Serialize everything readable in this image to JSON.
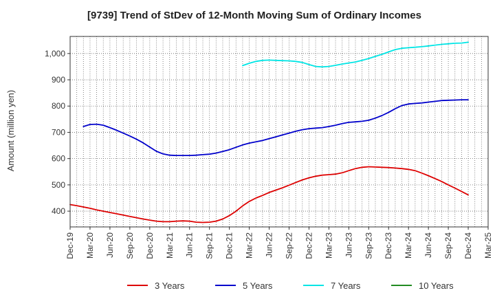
{
  "chart_data": {
    "type": "line",
    "title": "[9739]  Trend of StDev of 12-Month Moving Sum of Ordinary Incomes",
    "xlabel": "",
    "ylabel": "Amount (million yen)",
    "x_ticks": [
      "Dec-19",
      "Mar-20",
      "Jun-20",
      "Sep-20",
      "Dec-20",
      "Mar-21",
      "Jun-21",
      "Sep-21",
      "Dec-21",
      "Mar-22",
      "Jun-22",
      "Sep-22",
      "Dec-22",
      "Mar-23",
      "Jun-23",
      "Sep-23",
      "Dec-23",
      "Mar-24",
      "Jun-24",
      "Sep-24",
      "Dec-24",
      "Mar-25"
    ],
    "y_ticks": [
      400,
      500,
      600,
      700,
      800,
      900,
      1000
    ],
    "y_tick_labels": [
      "400",
      "500",
      "600",
      "700",
      "800",
      "900",
      "1,000"
    ],
    "ylim": [
      340,
      1065
    ],
    "grid": true,
    "legend_position": "bottom",
    "series": [
      {
        "name": "3 Years",
        "color": "#dd0000",
        "x": [
          "Dec-19",
          "Jan-20",
          "Feb-20",
          "Mar-20",
          "Apr-20",
          "May-20",
          "Jun-20",
          "Jul-20",
          "Aug-20",
          "Sep-20",
          "Oct-20",
          "Nov-20",
          "Dec-20",
          "Jan-21",
          "Feb-21",
          "Mar-21",
          "Apr-21",
          "May-21",
          "Jun-21",
          "Jul-21",
          "Aug-21",
          "Sep-21",
          "Oct-21",
          "Nov-21",
          "Dec-21",
          "Jan-22",
          "Feb-22",
          "Mar-22",
          "Apr-22",
          "May-22",
          "Jun-22",
          "Jul-22",
          "Aug-22",
          "Sep-22",
          "Oct-22",
          "Nov-22",
          "Dec-22",
          "Jan-23",
          "Feb-23",
          "Mar-23",
          "Apr-23",
          "May-23",
          "Jun-23",
          "Jul-23",
          "Aug-23",
          "Sep-23",
          "Oct-23",
          "Nov-23",
          "Dec-23",
          "Jan-24",
          "Feb-24",
          "Mar-24",
          "Apr-24",
          "May-24",
          "Jun-24",
          "Jul-24",
          "Aug-24",
          "Sep-24",
          "Oct-24",
          "Nov-24",
          "Dec-24"
        ],
        "values": [
          425,
          421,
          416,
          411,
          405,
          400,
          395,
          390,
          385,
          380,
          375,
          370,
          366,
          362,
          360,
          360,
          362,
          363,
          362,
          358,
          357,
          358,
          362,
          370,
          383,
          400,
          420,
          437,
          450,
          460,
          471,
          480,
          489,
          499,
          509,
          519,
          527,
          533,
          537,
          539,
          541,
          546,
          554,
          562,
          567,
          569,
          568,
          567,
          566,
          564,
          562,
          559,
          554,
          545,
          535,
          524,
          513,
          500,
          488,
          475,
          462
        ]
      },
      {
        "name": "5 Years",
        "color": "#0000cc",
        "x": [
          "Feb-20",
          "Mar-20",
          "Apr-20",
          "May-20",
          "Jun-20",
          "Jul-20",
          "Aug-20",
          "Sep-20",
          "Oct-20",
          "Nov-20",
          "Dec-20",
          "Jan-21",
          "Feb-21",
          "Mar-21",
          "Apr-21",
          "May-21",
          "Jun-21",
          "Jul-21",
          "Aug-21",
          "Sep-21",
          "Oct-21",
          "Nov-21",
          "Dec-21",
          "Jan-22",
          "Feb-22",
          "Mar-22",
          "Apr-22",
          "May-22",
          "Jun-22",
          "Jul-22",
          "Aug-22",
          "Sep-22",
          "Oct-22",
          "Nov-22",
          "Dec-22",
          "Jan-23",
          "Feb-23",
          "Mar-23",
          "Apr-23",
          "May-23",
          "Jun-23",
          "Jul-23",
          "Aug-23",
          "Sep-23",
          "Oct-23",
          "Nov-23",
          "Dec-23",
          "Jan-24",
          "Feb-24",
          "Mar-24",
          "Apr-24",
          "May-24",
          "Jun-24",
          "Jul-24",
          "Aug-24",
          "Sep-24",
          "Oct-24",
          "Nov-24",
          "Dec-24"
        ],
        "values": [
          722,
          730,
          731,
          727,
          718,
          708,
          697,
          686,
          674,
          660,
          644,
          628,
          618,
          613,
          612,
          612,
          612,
          613,
          615,
          617,
          621,
          627,
          634,
          643,
          652,
          659,
          664,
          669,
          676,
          683,
          690,
          697,
          704,
          710,
          714,
          716,
          718,
          722,
          727,
          733,
          738,
          740,
          742,
          746,
          754,
          764,
          776,
          790,
          802,
          808,
          810,
          812,
          815,
          818,
          821,
          822,
          823,
          824,
          824
        ]
      },
      {
        "name": "7 Years",
        "color": "#00e5e5",
        "x": [
          "Feb-22",
          "Mar-22",
          "Apr-22",
          "May-22",
          "Jun-22",
          "Jul-22",
          "Aug-22",
          "Sep-22",
          "Oct-22",
          "Nov-22",
          "Dec-22",
          "Jan-23",
          "Feb-23",
          "Mar-23",
          "Apr-23",
          "May-23",
          "Jun-23",
          "Jul-23",
          "Aug-23",
          "Sep-23",
          "Oct-23",
          "Nov-23",
          "Dec-23",
          "Jan-24",
          "Feb-24",
          "Mar-24",
          "Apr-24",
          "May-24",
          "Jun-24",
          "Jul-24",
          "Aug-24",
          "Sep-24",
          "Oct-24",
          "Nov-24",
          "Dec-24"
        ],
        "values": [
          954,
          963,
          970,
          974,
          975,
          974,
          973,
          972,
          970,
          966,
          958,
          951,
          949,
          951,
          955,
          960,
          964,
          968,
          974,
          981,
          989,
          997,
          1006,
          1015,
          1020,
          1022,
          1024,
          1026,
          1029,
          1032,
          1035,
          1037,
          1039,
          1040,
          1043
        ]
      },
      {
        "name": "10 Years",
        "color": "#228b22",
        "x": [],
        "values": []
      }
    ]
  }
}
